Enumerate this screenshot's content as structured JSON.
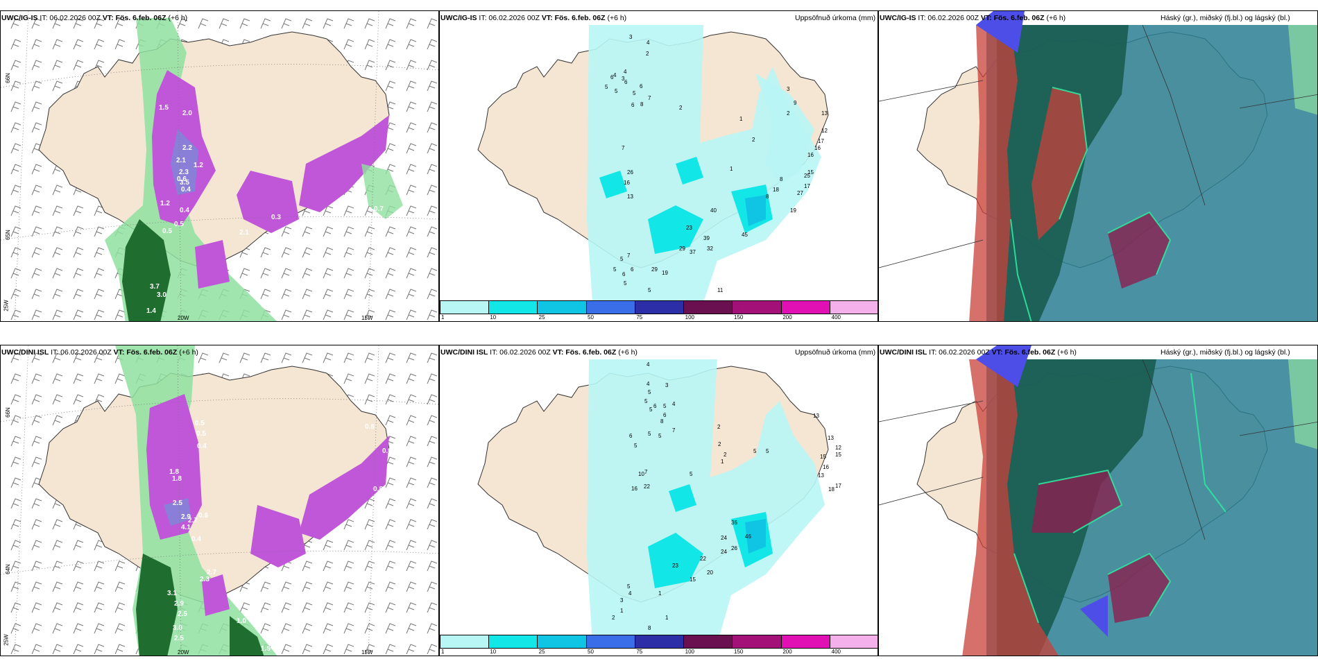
{
  "rows": [
    {
      "model": "UWC/IG-IS",
      "it": "IT: 06.02.2026 00Z",
      "vt": "VT: Fös. 6.feb. 06Z",
      "lead": "(+6 h)",
      "precip_labels": [
        "4",
        "3",
        "2",
        "4",
        "3",
        "5",
        "6",
        "5",
        "6",
        "4",
        "5",
        "6",
        "8",
        "7",
        "6",
        "2",
        "7",
        "1",
        "2",
        "1",
        "3",
        "9",
        "2",
        "13",
        "12",
        "17",
        "16",
        "16",
        "15",
        "17",
        "25",
        "27",
        "19",
        "8",
        "18",
        "8",
        "26",
        "16",
        "13",
        "40",
        "45",
        "23",
        "39",
        "32",
        "29",
        "37",
        "5",
        "7",
        "6",
        "5",
        "6",
        "19",
        "29",
        "5",
        "11",
        "5"
      ],
      "wind_labels": [
        "1.5",
        "2.0",
        "2.2",
        "2.1",
        "2.3",
        "3.5",
        "1.2",
        "0.5",
        "0.4",
        "0.6",
        "0.4",
        "2.1",
        "0.3",
        "0.5",
        "3.7",
        "3.0",
        "1.4",
        "0.6",
        "0.7",
        "1.2"
      ]
    },
    {
      "model": "UWC/DINI ISL",
      "it": "IT: 06.02.2026 00Z",
      "vt": "VT: Fös. 6.feb. 06Z",
      "lead": "(+6 h)",
      "precip_labels": [
        "4",
        "4",
        "3",
        "5",
        "5",
        "5",
        "6",
        "6",
        "5",
        "8",
        "4",
        "7",
        "5",
        "5",
        "6",
        "5",
        "10",
        "7",
        "5",
        "2",
        "2",
        "2",
        "1",
        "5",
        "5",
        "13",
        "13",
        "12",
        "15",
        "16",
        "13",
        "15",
        "18",
        "17",
        "22",
        "16",
        "36",
        "46",
        "24",
        "26",
        "20",
        "22",
        "15",
        "24",
        "23",
        "5",
        "4",
        "3",
        "2",
        "1",
        "1",
        "1",
        "8"
      ],
      "wind_labels": [
        "0.5",
        "0.5",
        "0.4",
        "1.8",
        "1.8",
        "2.5",
        "2.9",
        "2.7",
        "4.1",
        "0.6",
        "0.4",
        "2.7",
        "2.3",
        "0.8",
        "3.1",
        "2.9",
        "2.5",
        "3.0",
        "2.5",
        "1.0",
        "1.5",
        "0.6",
        "0.8"
      ]
    }
  ],
  "precip_title": "Uppsöfnuð úrkoma (mm)",
  "cloud_title": "Háský (gr.), miðský (fj.bl.) og lágský (bl.)",
  "lat_labels": [
    "66N",
    "65N",
    "64N"
  ],
  "lon_labels": [
    "25W",
    "20W",
    "15W"
  ],
  "colorbar": {
    "ticks": [
      "1",
      "10",
      "25",
      "50",
      "75",
      "100",
      "150",
      "200",
      "400"
    ],
    "colors": [
      "#b8f5f5",
      "#12e6e6",
      "#10c4e4",
      "#3a6ee8",
      "#2b2ea6",
      "#6a1050",
      "#a31078",
      "#e010b4",
      "#f4b0ea"
    ]
  },
  "colors": {
    "land": "#f5e6d4",
    "sea": "#ffffff",
    "precip_light": "#b8f5f5",
    "cloud_high": "#1a5c50",
    "cloud_mid": "#2a7f93",
    "cloud_low": "#c8403a",
    "purple": "#c056d8",
    "dkgreen": "#1f6e2f",
    "ltgreen": "#8fe0a0"
  }
}
